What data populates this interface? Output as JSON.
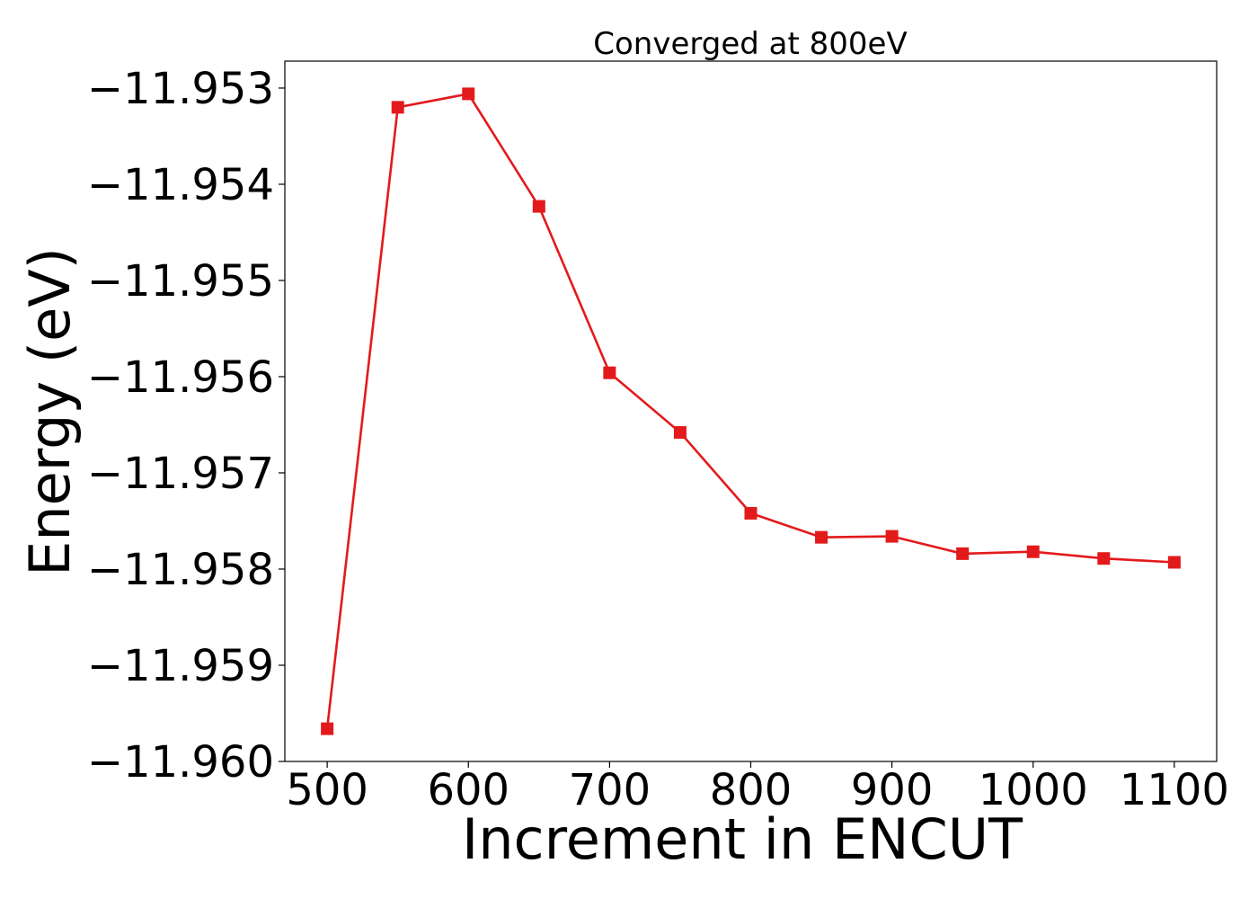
{
  "chart_data": {
    "type": "line",
    "title": "Converged at 800eV",
    "xlabel": "Increment in ENCUT",
    "ylabel": "Energy (eV)",
    "xlim": [
      470,
      1130
    ],
    "ylim": [
      -11.96,
      -11.95272
    ],
    "x_ticks": [
      500,
      600,
      700,
      800,
      900,
      1000,
      1100
    ],
    "x_tick_labels": [
      "500",
      "600",
      "700",
      "800",
      "900",
      "1000",
      "1100"
    ],
    "y_ticks": [
      -11.953,
      -11.954,
      -11.955,
      -11.956,
      -11.957,
      -11.958,
      -11.959,
      -11.96
    ],
    "y_tick_labels": [
      "−11.953",
      "−11.954",
      "−11.955",
      "−11.956",
      "−11.957",
      "−11.958",
      "−11.959",
      "−11.960"
    ],
    "grid": false,
    "series": [
      {
        "color": "#e31a1c",
        "marker": "square",
        "x": [
          500,
          550,
          600,
          650,
          700,
          750,
          800,
          850,
          900,
          950,
          1000,
          1050,
          1100
        ],
        "values": [
          -11.95966,
          -11.9532,
          -11.95306,
          -11.95423,
          -11.95596,
          -11.95658,
          -11.95742,
          -11.95767,
          -11.95766,
          -11.95784,
          -11.95782,
          -11.95789,
          -11.95793
        ]
      }
    ]
  }
}
